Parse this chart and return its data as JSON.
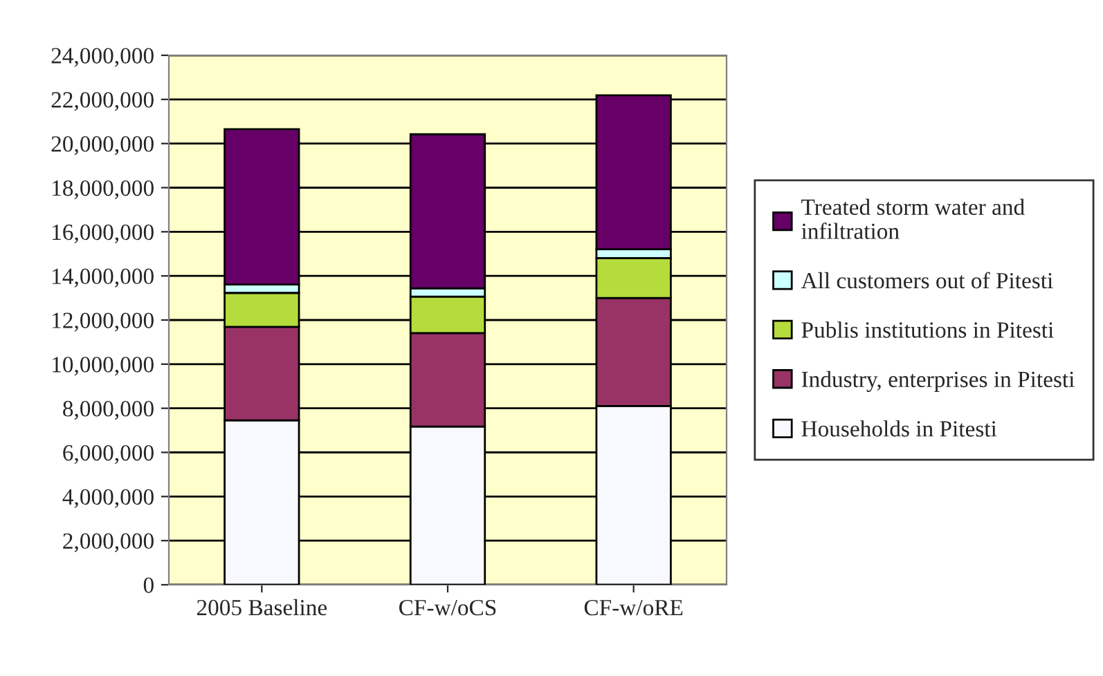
{
  "chart_data": {
    "type": "bar",
    "stacked": true,
    "categories": [
      "2005 Baseline",
      "CF-w/oCS",
      "CF-w/oRE"
    ],
    "series": [
      {
        "name": "Households in Pitesti",
        "color": "#f8f8ff",
        "values": [
          7450000,
          7170000,
          8100000
        ]
      },
      {
        "name": "Industry, enterprises in Pitesti",
        "color": "#993366",
        "values": [
          4240000,
          4240000,
          4900000
        ]
      },
      {
        "name": "Publis institutions in Pitesti",
        "color": "#b5dc3c",
        "values": [
          1540000,
          1650000,
          1810000
        ]
      },
      {
        "name": "All customers out of Pitesti",
        "color": "#ccffff",
        "values": [
          380000,
          380000,
          400000
        ]
      },
      {
        "name": "Treated storm water and infiltration",
        "color": "#660066",
        "values": [
          7040000,
          6980000,
          6980000
        ]
      }
    ],
    "ylim": [
      0,
      24000000
    ],
    "yticks": [
      {
        "value": 0,
        "label": "0"
      },
      {
        "value": 2000000,
        "label": "2,000,000"
      },
      {
        "value": 4000000,
        "label": "4,000,000"
      },
      {
        "value": 6000000,
        "label": "6,000,000"
      },
      {
        "value": 8000000,
        "label": "8,000,000"
      },
      {
        "value": 10000000,
        "label": "10,000,000"
      },
      {
        "value": 12000000,
        "label": "12,000,000"
      },
      {
        "value": 14000000,
        "label": "14,000,000"
      },
      {
        "value": 16000000,
        "label": "16,000,000"
      },
      {
        "value": 18000000,
        "label": "18,000,000"
      },
      {
        "value": 20000000,
        "label": "20,000,000"
      },
      {
        "value": 22000000,
        "label": "22,000,000"
      },
      {
        "value": 24000000,
        "label": "24,000,000"
      }
    ],
    "grid": "y",
    "legend": "right"
  }
}
